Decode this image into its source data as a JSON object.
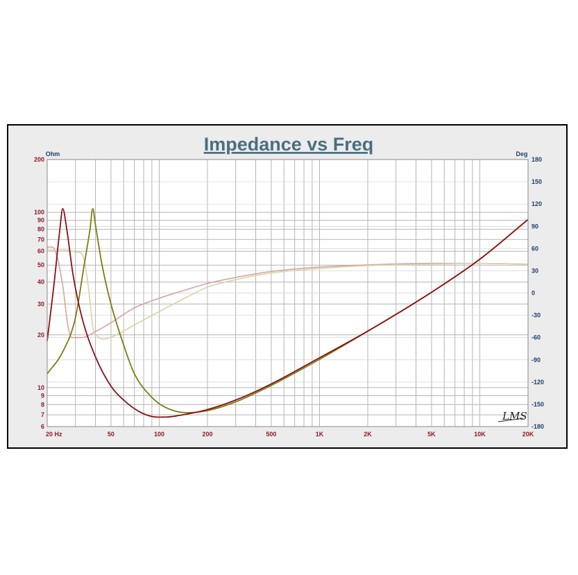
{
  "chart_data": {
    "type": "line",
    "title": "Impedance vs Freq",
    "xscale": "log",
    "xlim": [
      20,
      20000
    ],
    "x_ticks": [
      {
        "v": 20,
        "label": "20  Hz"
      },
      {
        "v": 50,
        "label": "50"
      },
      {
        "v": 100,
        "label": "100"
      },
      {
        "v": 200,
        "label": "200"
      },
      {
        "v": 500,
        "label": "500"
      },
      {
        "v": 1000,
        "label": "1K"
      },
      {
        "v": 2000,
        "label": "2K"
      },
      {
        "v": 5000,
        "label": "5K"
      },
      {
        "v": 10000,
        "label": "10K"
      },
      {
        "v": 20000,
        "label": "20K"
      }
    ],
    "y_left": {
      "unit": "Ohm",
      "scale": "log",
      "lim": [
        6,
        200
      ],
      "ticks": [
        {
          "v": 200,
          "label": "200"
        },
        {
          "v": 100,
          "label": "100"
        },
        {
          "v": 90,
          "label": "90"
        },
        {
          "v": 80,
          "label": "80"
        },
        {
          "v": 70,
          "label": "70"
        },
        {
          "v": 60,
          "label": "60"
        },
        {
          "v": 50,
          "label": "50"
        },
        {
          "v": 40,
          "label": "40"
        },
        {
          "v": 30,
          "label": "30"
        },
        {
          "v": 20,
          "label": "20"
        },
        {
          "v": 10,
          "label": "10"
        },
        {
          "v": 9,
          "label": "9"
        },
        {
          "v": 8,
          "label": "8"
        },
        {
          "v": 7,
          "label": "7"
        },
        {
          "v": 6,
          "label": "6"
        }
      ]
    },
    "y_right": {
      "unit": "Deg",
      "scale": "linear",
      "lim": [
        -180,
        180
      ],
      "ticks": [
        {
          "v": 180,
          "label": "180"
        },
        {
          "v": 150,
          "label": "150"
        },
        {
          "v": 120,
          "label": "120"
        },
        {
          "v": 90,
          "label": "90"
        },
        {
          "v": 60,
          "label": "60"
        },
        {
          "v": 30,
          "label": "30"
        },
        {
          "v": 0,
          "label": "0"
        },
        {
          "v": -30,
          "label": "-30"
        },
        {
          "v": -60,
          "label": "-60"
        },
        {
          "v": -90,
          "label": "-90"
        },
        {
          "v": -120,
          "label": "-120"
        },
        {
          "v": -150,
          "label": "-150"
        },
        {
          "v": -180,
          "label": "-180"
        }
      ]
    },
    "grid": true,
    "series": [
      {
        "axis": "left",
        "color": "#8b0f14",
        "points": [
          [
            20,
            18.5
          ],
          [
            22,
            38
          ],
          [
            24,
            80
          ],
          [
            25,
            105
          ],
          [
            26.5,
            80
          ],
          [
            29,
            44
          ],
          [
            33,
            25
          ],
          [
            40,
            15
          ],
          [
            50,
            10.2
          ],
          [
            60,
            8.5
          ],
          [
            75,
            7.3
          ],
          [
            90,
            6.85
          ],
          [
            110,
            6.8
          ],
          [
            140,
            7.0
          ],
          [
            200,
            7.5
          ],
          [
            300,
            8.5
          ],
          [
            500,
            10.5
          ],
          [
            1000,
            14.8
          ],
          [
            2000,
            21
          ],
          [
            5000,
            35
          ],
          [
            10000,
            54
          ],
          [
            20000,
            91
          ]
        ]
      },
      {
        "axis": "left",
        "color": "#7c7c10",
        "points": [
          [
            20,
            12
          ],
          [
            25,
            16
          ],
          [
            30,
            25
          ],
          [
            34,
            50
          ],
          [
            37,
            80
          ],
          [
            38.5,
            105
          ],
          [
            40,
            85
          ],
          [
            44,
            50
          ],
          [
            50,
            30
          ],
          [
            60,
            17.5
          ],
          [
            70,
            12
          ],
          [
            90,
            8.8
          ],
          [
            110,
            7.7
          ],
          [
            150,
            7.2
          ],
          [
            200,
            7.4
          ],
          [
            300,
            8.3
          ],
          [
            500,
            10.3
          ],
          [
            1000,
            14.5
          ],
          [
            2000,
            21
          ],
          [
            5000,
            35
          ],
          [
            10000,
            54
          ],
          [
            20000,
            91
          ]
        ]
      },
      {
        "axis": "right",
        "color": "#d4a4a4",
        "points": [
          [
            20,
            62
          ],
          [
            21.5,
            62
          ],
          [
            23,
            50
          ],
          [
            25,
            10
          ],
          [
            27,
            -45
          ],
          [
            28.5,
            -60
          ],
          [
            33,
            -60
          ],
          [
            40,
            -52
          ],
          [
            50,
            -40
          ],
          [
            70,
            -20
          ],
          [
            100,
            -7
          ],
          [
            150,
            5
          ],
          [
            200,
            13
          ],
          [
            300,
            21
          ],
          [
            500,
            29
          ],
          [
            1000,
            35
          ],
          [
            2000,
            38
          ],
          [
            5000,
            40
          ],
          [
            10000,
            40
          ],
          [
            20000,
            39
          ]
        ]
      },
      {
        "axis": "right",
        "color": "#d9d3a7",
        "points": [
          [
            20,
            58
          ],
          [
            30,
            55
          ],
          [
            34,
            45
          ],
          [
            36.5,
            0
          ],
          [
            38.5,
            -45
          ],
          [
            41,
            -58
          ],
          [
            45,
            -62
          ],
          [
            52,
            -58
          ],
          [
            70,
            -43
          ],
          [
            100,
            -25
          ],
          [
            150,
            -5
          ],
          [
            200,
            8
          ],
          [
            300,
            18
          ],
          [
            500,
            27
          ],
          [
            1000,
            33
          ],
          [
            2000,
            37
          ],
          [
            5000,
            39
          ],
          [
            10000,
            40
          ],
          [
            20000,
            39
          ]
        ]
      }
    ]
  }
}
